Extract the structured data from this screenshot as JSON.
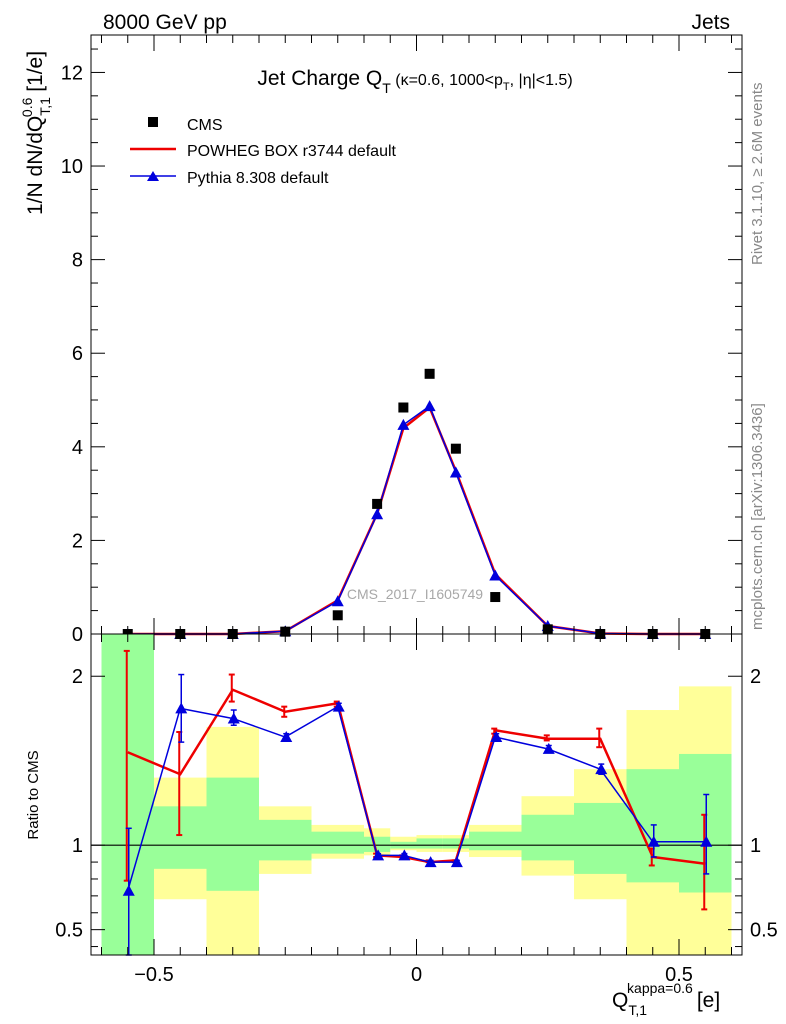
{
  "header": {
    "left": "8000 GeV pp",
    "right": "Jets"
  },
  "side": {
    "rivet": "Rivet 3.1.10, ≥ 2.6M events",
    "mcplots": "mcplots.cern.ch [arXiv:1306.3436]"
  },
  "watermark": "CMS_2017_I1605749",
  "colors": {
    "data": "#000000",
    "powheg": "#ee0000",
    "pythia": "#0000dd",
    "band_yellow": "#ffff99",
    "band_green": "#99ff99"
  },
  "chart_data": [
    {
      "type": "scatter",
      "title": "Jet Charge Q_T (κ=0.6, 1000<p_T, |η|<1.5)",
      "ylabel": "1/N dN/dQ^0.6_T,1 [1/e]",
      "xlim": [
        -0.62,
        0.62
      ],
      "ylim": [
        0,
        12.8
      ],
      "yticks": [
        0,
        2,
        4,
        6,
        8,
        10,
        12
      ],
      "legend_position": "top-left",
      "x": [
        -0.55,
        -0.45,
        -0.35,
        -0.25,
        -0.15,
        -0.075,
        -0.025,
        0.025,
        0.075,
        0.15,
        0.25,
        0.35,
        0.45,
        0.55
      ],
      "series": [
        {
          "name": "CMS",
          "style": "markers",
          "values": [
            0.0,
            0.0,
            0.0,
            0.05,
            0.4,
            2.78,
            4.84,
            5.56,
            3.96,
            0.79,
            0.1,
            0.0,
            0.0,
            0.0
          ]
        },
        {
          "name": "POWHEG BOX r3744 default",
          "style": "line",
          "values": [
            0.0,
            0.0,
            0.0,
            0.06,
            0.72,
            2.57,
            4.4,
            4.84,
            3.48,
            1.28,
            0.17,
            0.01,
            0.0,
            0.0
          ]
        },
        {
          "name": "Pythia 8.308 default",
          "style": "line-triangles",
          "values": [
            0.0,
            0.0,
            0.0,
            0.06,
            0.7,
            2.56,
            4.47,
            4.87,
            3.45,
            1.25,
            0.17,
            0.01,
            0.0,
            0.0
          ]
        }
      ]
    },
    {
      "type": "line",
      "ylabel": "Ratio to CMS",
      "xlabel": "Q^kappa=0.6_T,1 [e]",
      "xlim": [
        -0.62,
        0.62
      ],
      "ylim": [
        0.35,
        2.25
      ],
      "yticks": [
        0.5,
        1,
        2
      ],
      "xticks": [
        -0.5,
        0,
        0.5
      ],
      "xtick_labels": [
        "−0.5",
        "0",
        "0.5"
      ],
      "reference_line": 1,
      "x": [
        -0.55,
        -0.45,
        -0.35,
        -0.25,
        -0.15,
        -0.075,
        -0.025,
        0.025,
        0.075,
        0.15,
        0.25,
        0.35,
        0.45,
        0.55
      ],
      "uncertainty_bands": {
        "edges": [
          -0.6,
          -0.5,
          -0.4,
          -0.3,
          -0.2,
          -0.1,
          -0.05,
          0.0,
          0.05,
          0.1,
          0.2,
          0.3,
          0.4,
          0.5,
          0.6
        ],
        "green_lo": [
          0.35,
          0.86,
          0.73,
          0.91,
          0.95,
          0.96,
          0.98,
          0.98,
          0.98,
          0.97,
          0.91,
          0.83,
          0.78,
          0.72
        ],
        "green_hi": [
          2.25,
          1.23,
          1.4,
          1.15,
          1.08,
          1.05,
          1.02,
          1.04,
          1.04,
          1.08,
          1.18,
          1.25,
          1.45,
          1.54
        ],
        "yellow_lo": [
          0.35,
          0.68,
          0.35,
          0.83,
          0.92,
          0.94,
          0.97,
          0.96,
          0.96,
          0.93,
          0.82,
          0.68,
          0.35,
          0.35
        ],
        "yellow_hi": [
          2.25,
          1.4,
          1.7,
          1.23,
          1.12,
          1.1,
          1.05,
          1.06,
          1.06,
          1.12,
          1.29,
          1.45,
          1.8,
          1.94
        ]
      },
      "series": [
        {
          "name": "POWHEG BOX r3744 default",
          "values": [
            1.55,
            1.42,
            1.92,
            1.79,
            1.84,
            0.94,
            0.93,
            0.9,
            0.91,
            1.68,
            1.63,
            1.63,
            0.93,
            0.89
          ],
          "err_lo": [
            0.79,
            1.06,
            1.85,
            1.76,
            1.82,
            0.93,
            0.93,
            0.9,
            0.9,
            1.66,
            1.62,
            1.58,
            0.88,
            0.62
          ],
          "err_hi": [
            2.15,
            1.67,
            2.01,
            1.82,
            1.85,
            0.95,
            0.94,
            0.91,
            0.91,
            1.69,
            1.65,
            1.69,
            0.98,
            1.18
          ]
        },
        {
          "name": "Pythia 8.308 default",
          "values": [
            0.73,
            1.81,
            1.75,
            1.64,
            1.82,
            0.94,
            0.94,
            0.9,
            0.9,
            1.64,
            1.57,
            1.45,
            1.02,
            1.02
          ],
          "err_lo": [
            0.35,
            1.61,
            1.71,
            1.62,
            1.8,
            0.93,
            0.93,
            0.89,
            0.89,
            1.63,
            1.55,
            1.42,
            0.93,
            0.83
          ],
          "err_hi": [
            1.1,
            2.01,
            1.8,
            1.66,
            1.84,
            0.95,
            0.95,
            0.91,
            0.91,
            1.66,
            1.59,
            1.48,
            1.12,
            1.3
          ]
        }
      ]
    }
  ]
}
